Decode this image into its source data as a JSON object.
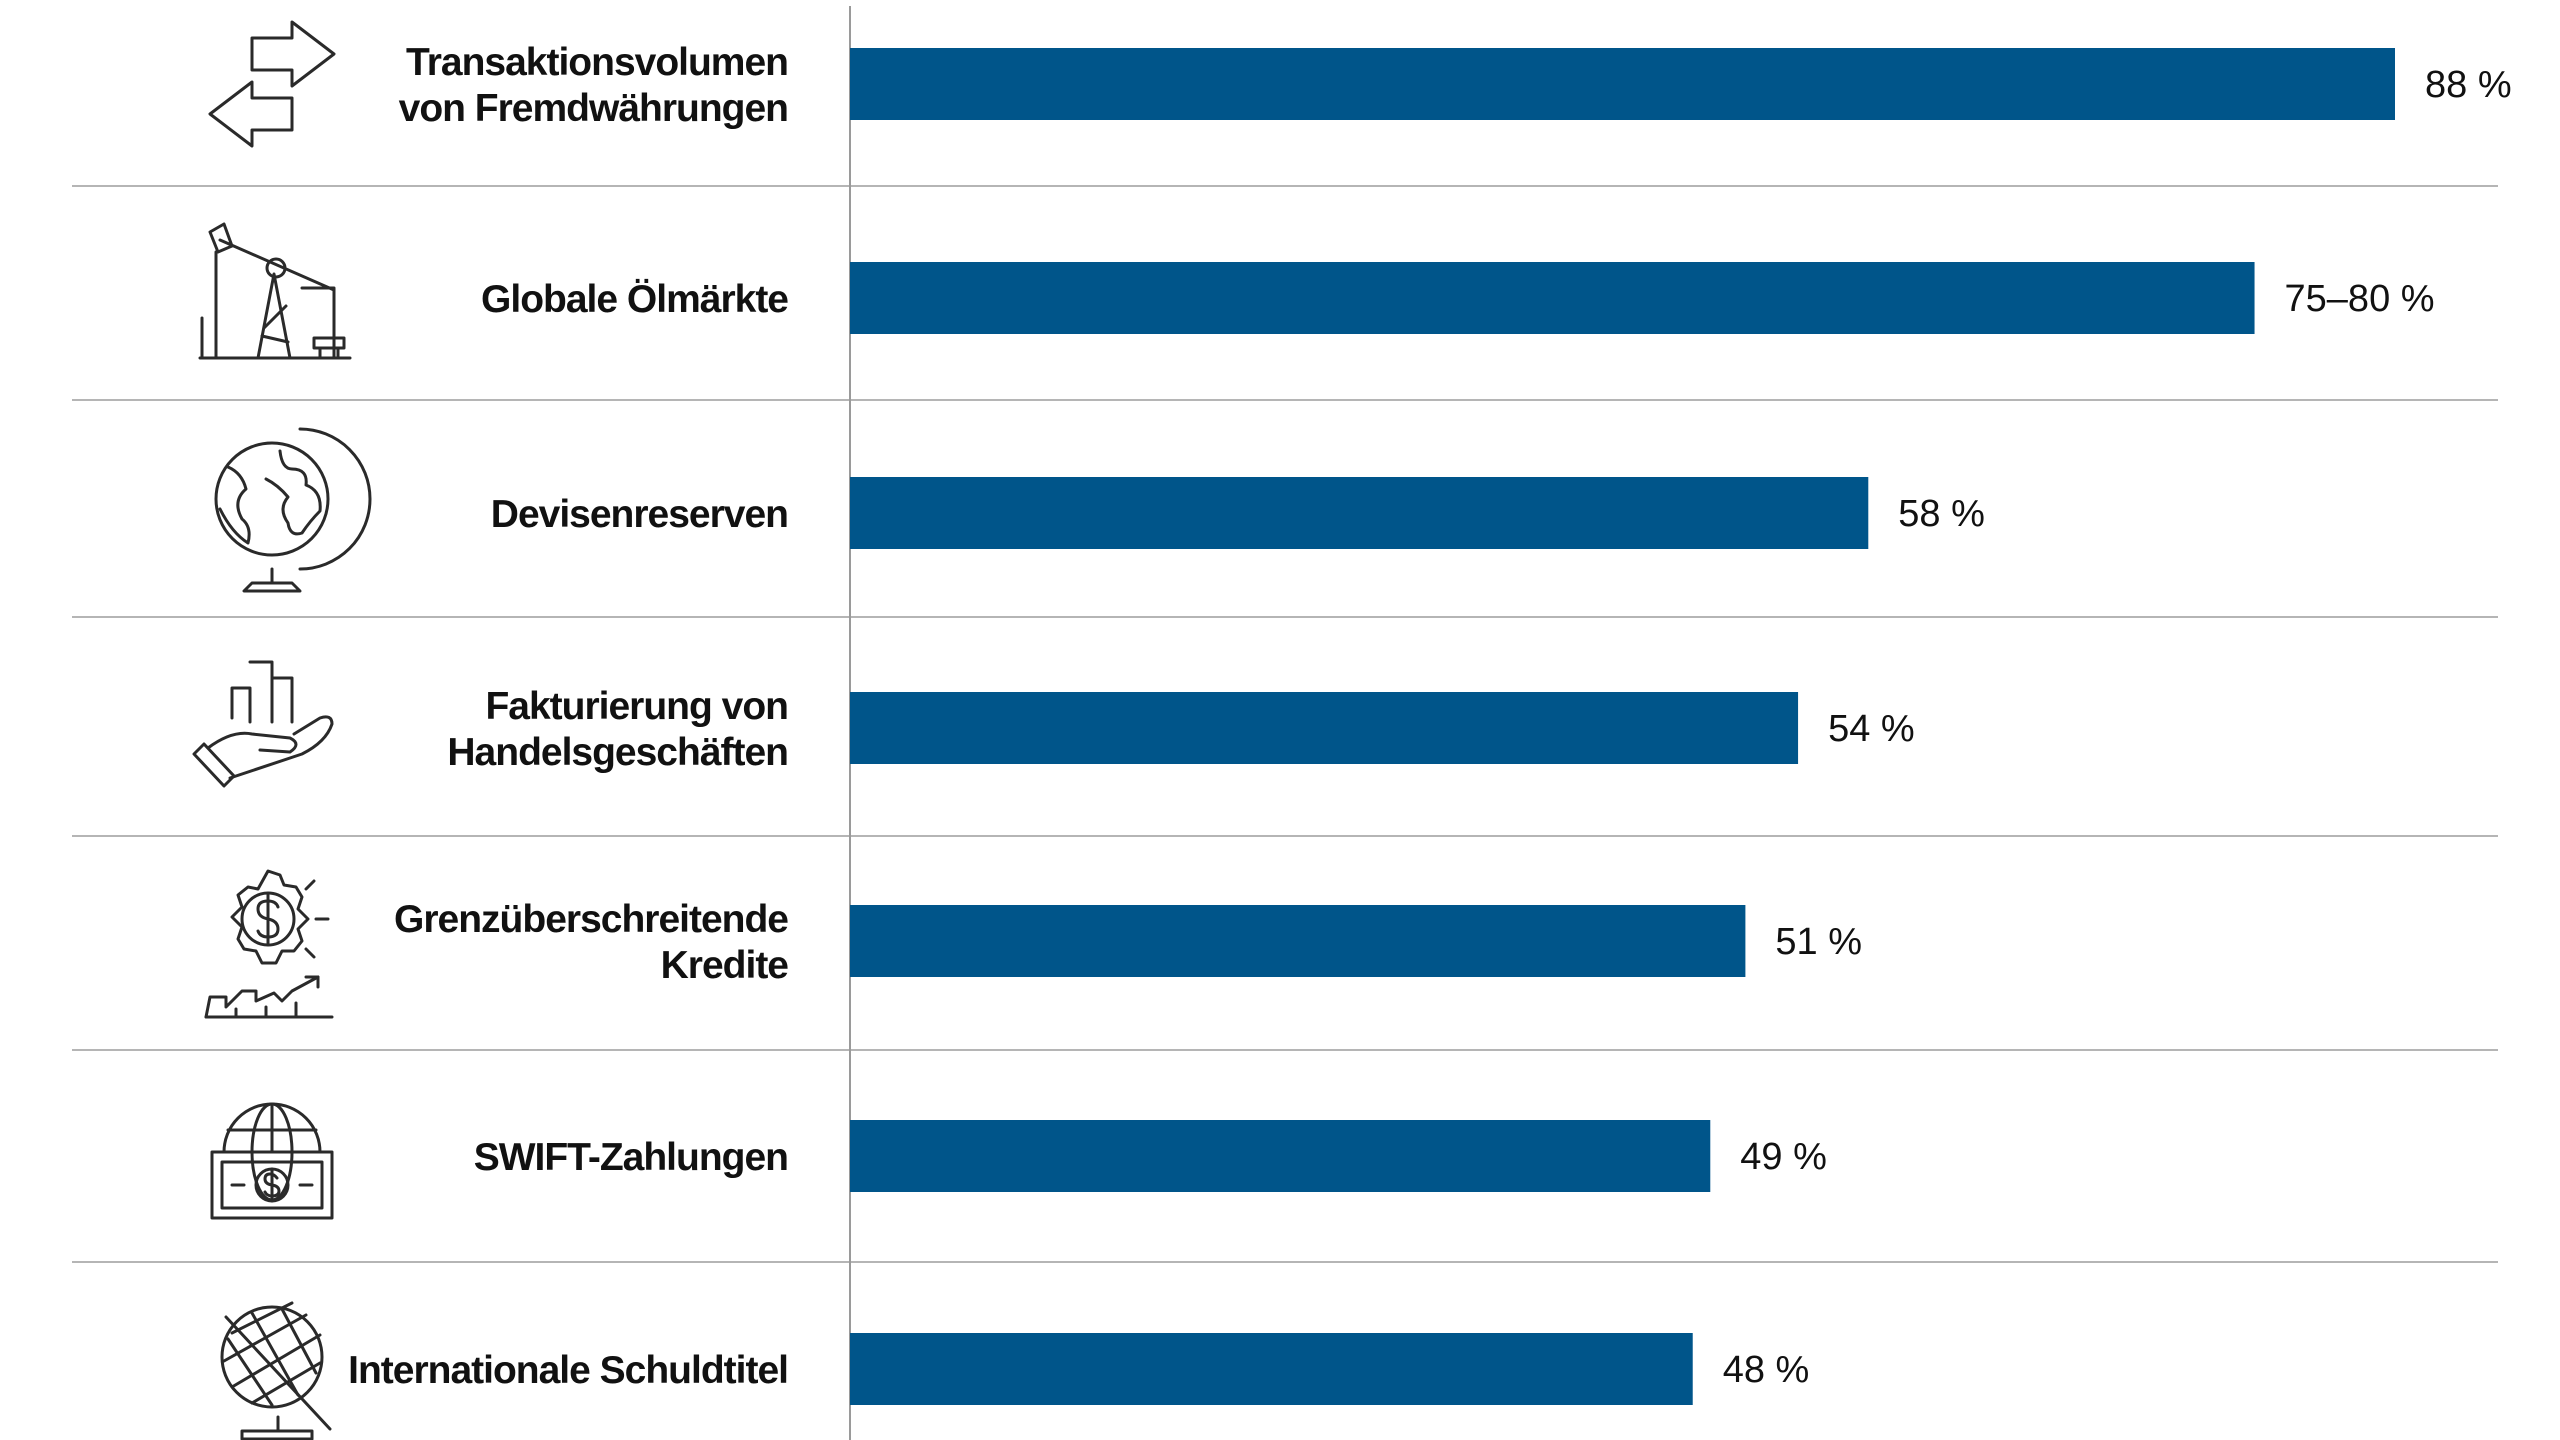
{
  "chart_data": {
    "type": "bar",
    "orientation": "horizontal",
    "xlim": [
      0,
      100
    ],
    "grid": false,
    "legend": "none",
    "bar_color": "#00558a",
    "categories": [
      [
        "Transaktionsvolumen",
        "von Fremdwährungen"
      ],
      [
        "Globale Ölmärkte"
      ],
      [
        "Devisenreserven"
      ],
      [
        "Fakturierung von",
        "Handelsgeschäften"
      ],
      [
        "Grenzüberschreitende",
        "Kredite"
      ],
      [
        "SWIFT-Zahlungen"
      ],
      [
        "Internationale Schuldtitel"
      ]
    ],
    "values": [
      88,
      80,
      58,
      54,
      51,
      49,
      48
    ],
    "value_labels": [
      "88 %",
      "75–80 %",
      "58 %",
      "54 %",
      "51 %",
      "49 %",
      "48 %"
    ],
    "icons": [
      "exchange-arrows-icon",
      "oil-pump-icon",
      "globe-icon",
      "hand-with-chart-icon",
      "gear-dollar-growth-icon",
      "globe-banknote-icon",
      "globe-crosshatch-icon"
    ]
  }
}
